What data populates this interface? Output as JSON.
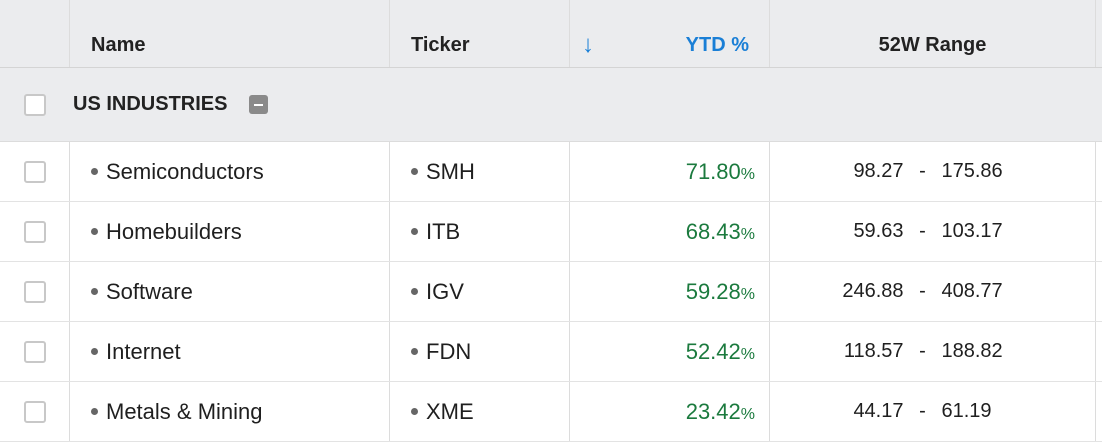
{
  "header": {
    "name_label": "Name",
    "ticker_label": "Ticker",
    "sort_arrow": "↓",
    "ytd_label": "YTD %",
    "range_label": "52W Range"
  },
  "group": {
    "label": "US INDUSTRIES"
  },
  "rows": [
    {
      "name": "Semiconductors",
      "ticker": "SMH",
      "ytd_value": "71.80",
      "ytd_unit": "%",
      "range_low": "98.27",
      "range_sep": "-",
      "range_high": "175.86"
    },
    {
      "name": "Homebuilders",
      "ticker": "ITB",
      "ytd_value": "68.43",
      "ytd_unit": "%",
      "range_low": "59.63",
      "range_sep": "-",
      "range_high": "103.17"
    },
    {
      "name": "Software",
      "ticker": "IGV",
      "ytd_value": "59.28",
      "ytd_unit": "%",
      "range_low": "246.88",
      "range_sep": "-",
      "range_high": "408.77"
    },
    {
      "name": "Internet",
      "ticker": "FDN",
      "ytd_value": "52.42",
      "ytd_unit": "%",
      "range_low": "118.57",
      "range_sep": "-",
      "range_high": "188.82"
    },
    {
      "name": "Metals & Mining",
      "ticker": "XME",
      "ytd_value": "23.42",
      "ytd_unit": "%",
      "range_low": "44.17",
      "range_sep": "-",
      "range_high": "61.19"
    }
  ],
  "colors": {
    "positive": "#1b7a3e",
    "accent": "#1a7fd6",
    "header_bg": "#ebecee"
  }
}
